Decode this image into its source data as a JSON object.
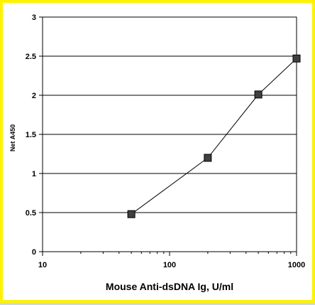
{
  "chart_data": {
    "type": "line",
    "title": "",
    "xlabel": "Mouse Anti-dsDNA Ig, U/ml",
    "ylabel": "Net A450",
    "x_scale": "log",
    "xlim": [
      10,
      1000
    ],
    "ylim": [
      0,
      3
    ],
    "x_ticks": [
      "10",
      "100",
      "1000"
    ],
    "y_ticks": [
      "0",
      "0.5",
      "1",
      "1.5",
      "2",
      "2.5",
      "3"
    ],
    "grid": "horizontal",
    "series": [
      {
        "x": [
          50,
          200,
          500,
          1000
        ],
        "y": [
          0.48,
          1.2,
          2.01,
          2.47
        ],
        "marker": "square",
        "color": "#000000"
      }
    ]
  },
  "colors": {
    "frame_border": "#fff200",
    "page_background": "#c9d6ef",
    "marker_fill": "#404040"
  }
}
